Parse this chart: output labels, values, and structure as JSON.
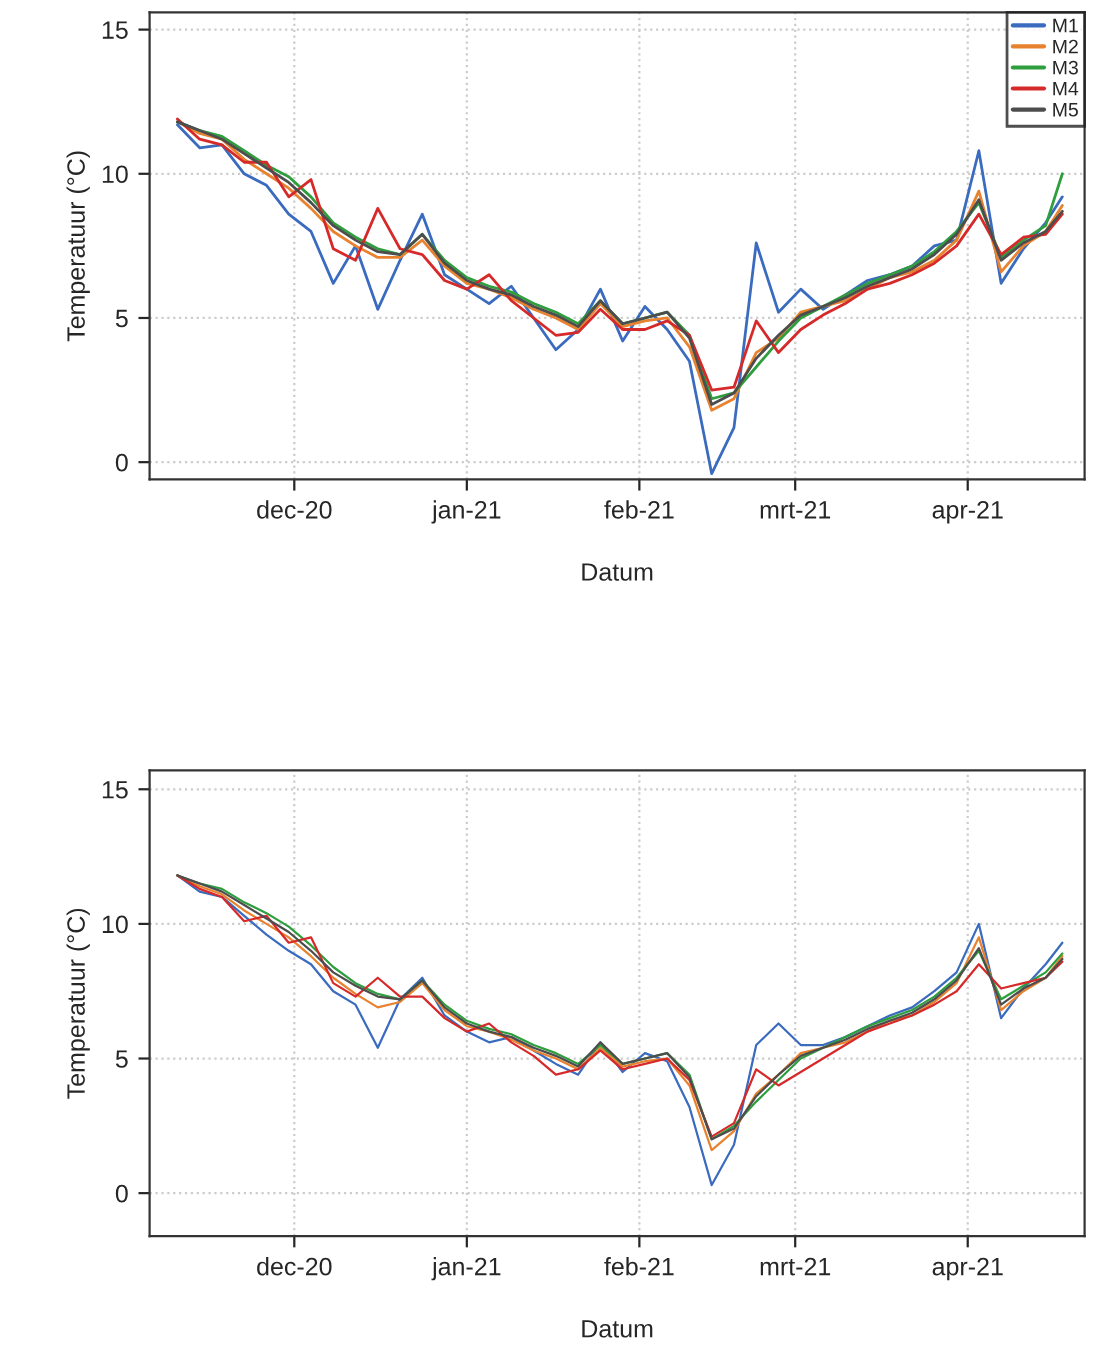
{
  "chart_data": [
    {
      "type": "line",
      "xlabel": "Datum",
      "ylabel": "Temperatuur (°C)",
      "x": [
        "2020-11-10",
        "2020-11-14",
        "2020-11-18",
        "2020-11-22",
        "2020-11-26",
        "2020-11-30",
        "2020-12-04",
        "2020-12-08",
        "2020-12-12",
        "2020-12-16",
        "2020-12-20",
        "2020-12-24",
        "2020-12-28",
        "2021-01-01",
        "2021-01-05",
        "2021-01-09",
        "2021-01-13",
        "2021-01-17",
        "2021-01-21",
        "2021-01-25",
        "2021-01-29",
        "2021-02-02",
        "2021-02-06",
        "2021-02-10",
        "2021-02-14",
        "2021-02-18",
        "2021-02-22",
        "2021-02-26",
        "2021-03-02",
        "2021-03-06",
        "2021-03-10",
        "2021-03-14",
        "2021-03-18",
        "2021-03-22",
        "2021-03-26",
        "2021-03-30",
        "2021-04-03",
        "2021-04-07",
        "2021-04-11",
        "2021-04-15",
        "2021-04-18"
      ],
      "series": [
        {
          "name": "M1",
          "color": "#3a6bbf",
          "values": [
            11.7,
            10.9,
            11.0,
            10.0,
            9.6,
            8.6,
            8.0,
            6.2,
            7.5,
            5.3,
            7.0,
            8.6,
            6.5,
            6.0,
            5.5,
            6.1,
            5.0,
            3.9,
            4.6,
            6.0,
            4.2,
            5.4,
            4.6,
            3.5,
            -0.4,
            1.2,
            7.6,
            5.2,
            6.0,
            5.3,
            5.8,
            6.3,
            6.5,
            6.8,
            7.5,
            7.7,
            10.8,
            6.2,
            7.4,
            8.3,
            9.2
          ]
        },
        {
          "name": "M2",
          "color": "#e8822e",
          "values": [
            11.8,
            11.4,
            11.2,
            10.5,
            10.0,
            9.5,
            8.8,
            8.0,
            7.5,
            7.1,
            7.1,
            7.7,
            6.8,
            6.2,
            6.0,
            5.7,
            5.3,
            5.0,
            4.6,
            5.5,
            4.7,
            4.9,
            5.0,
            4.0,
            1.8,
            2.2,
            3.8,
            4.3,
            5.2,
            5.4,
            5.6,
            6.0,
            6.4,
            6.6,
            7.0,
            7.7,
            9.4,
            6.6,
            7.5,
            8.0,
            8.9
          ]
        },
        {
          "name": "M3",
          "color": "#2e9e3e",
          "values": [
            11.8,
            11.5,
            11.3,
            10.8,
            10.3,
            9.9,
            9.2,
            8.3,
            7.8,
            7.4,
            7.2,
            7.9,
            7.0,
            6.4,
            6.1,
            5.9,
            5.5,
            5.2,
            4.8,
            5.6,
            4.8,
            5.0,
            5.2,
            4.4,
            2.2,
            2.4,
            3.3,
            4.2,
            5.0,
            5.4,
            5.8,
            6.2,
            6.5,
            6.8,
            7.3,
            8.0,
            9.0,
            7.1,
            7.7,
            8.2,
            10.0
          ]
        },
        {
          "name": "M4",
          "color": "#d62a2a",
          "values": [
            11.9,
            11.2,
            11.0,
            10.4,
            10.4,
            9.2,
            9.8,
            7.4,
            7.0,
            8.8,
            7.4,
            7.2,
            6.3,
            6.0,
            6.5,
            5.6,
            5.0,
            4.4,
            4.5,
            5.3,
            4.6,
            4.6,
            4.9,
            4.4,
            2.5,
            2.6,
            4.9,
            3.8,
            4.6,
            5.1,
            5.5,
            6.0,
            6.2,
            6.5,
            6.9,
            7.5,
            8.6,
            7.2,
            7.8,
            7.9,
            8.6
          ]
        },
        {
          "name": "M5",
          "color": "#4d4d4d",
          "values": [
            11.8,
            11.5,
            11.2,
            10.7,
            10.2,
            9.7,
            9.0,
            8.2,
            7.7,
            7.3,
            7.2,
            7.9,
            6.9,
            6.3,
            6.0,
            5.8,
            5.4,
            5.1,
            4.7,
            5.6,
            4.8,
            5.0,
            5.2,
            4.3,
            2.0,
            2.4,
            3.6,
            4.4,
            5.1,
            5.4,
            5.7,
            6.1,
            6.4,
            6.7,
            7.2,
            7.9,
            9.1,
            7.0,
            7.6,
            8.0,
            8.7
          ]
        }
      ],
      "xlim": [
        "2020-11-05",
        "2021-04-22"
      ],
      "xticks": [
        {
          "value": "2020-12-01",
          "label": "dec-20"
        },
        {
          "value": "2021-01-01",
          "label": "jan-21"
        },
        {
          "value": "2021-02-01",
          "label": "feb-21"
        },
        {
          "value": "2021-03-01",
          "label": "mrt-21"
        },
        {
          "value": "2021-04-01",
          "label": "apr-21"
        }
      ],
      "ylim": [
        -0.6,
        15.6
      ],
      "yticks": [
        0,
        5,
        10,
        15
      ],
      "grid": true,
      "legend": "top right"
    },
    {
      "type": "line",
      "xlabel": "Datum",
      "ylabel": "Temperatuur (°C)",
      "x": [
        "2020-11-10",
        "2020-11-14",
        "2020-11-18",
        "2020-11-22",
        "2020-11-26",
        "2020-11-30",
        "2020-12-04",
        "2020-12-08",
        "2020-12-12",
        "2020-12-16",
        "2020-12-20",
        "2020-12-24",
        "2020-12-28",
        "2021-01-01",
        "2021-01-05",
        "2021-01-09",
        "2021-01-13",
        "2021-01-17",
        "2021-01-21",
        "2021-01-25",
        "2021-01-29",
        "2021-02-02",
        "2021-02-06",
        "2021-02-10",
        "2021-02-14",
        "2021-02-18",
        "2021-02-22",
        "2021-02-26",
        "2021-03-02",
        "2021-03-06",
        "2021-03-10",
        "2021-03-14",
        "2021-03-18",
        "2021-03-22",
        "2021-03-26",
        "2021-03-30",
        "2021-04-03",
        "2021-04-07",
        "2021-04-11",
        "2021-04-15",
        "2021-04-18"
      ],
      "series": [
        {
          "color": "#3a6bbf",
          "values": [
            11.8,
            11.2,
            11.0,
            10.3,
            9.6,
            9.0,
            8.5,
            7.5,
            7.0,
            5.4,
            7.2,
            8.0,
            6.6,
            6.0,
            5.6,
            5.8,
            5.3,
            4.8,
            4.4,
            5.6,
            4.5,
            5.2,
            4.9,
            3.2,
            0.3,
            1.8,
            5.5,
            6.3,
            5.5,
            5.5,
            5.8,
            6.2,
            6.6,
            6.9,
            7.5,
            8.2,
            10.0,
            6.5,
            7.6,
            8.5,
            9.3
          ]
        },
        {
          "color": "#e8822e",
          "values": [
            11.8,
            11.4,
            11.1,
            10.5,
            10.0,
            9.5,
            8.8,
            8.0,
            7.4,
            6.9,
            7.1,
            7.8,
            6.8,
            6.2,
            6.0,
            5.7,
            5.3,
            5.0,
            4.6,
            5.4,
            4.7,
            4.9,
            5.0,
            4.0,
            1.6,
            2.3,
            3.7,
            4.4,
            5.2,
            5.4,
            5.6,
            6.0,
            6.4,
            6.6,
            7.1,
            7.8,
            9.5,
            6.8,
            7.5,
            8.0,
            8.8
          ]
        },
        {
          "color": "#2e9e3e",
          "values": [
            11.8,
            11.5,
            11.3,
            10.8,
            10.4,
            9.9,
            9.2,
            8.4,
            7.8,
            7.4,
            7.2,
            7.9,
            7.0,
            6.4,
            6.1,
            5.9,
            5.5,
            5.2,
            4.8,
            5.5,
            4.8,
            5.0,
            5.2,
            4.4,
            2.0,
            2.5,
            3.4,
            4.2,
            5.0,
            5.4,
            5.8,
            6.2,
            6.5,
            6.8,
            7.3,
            8.0,
            9.0,
            7.2,
            7.7,
            8.2,
            8.9
          ]
        },
        {
          "color": "#d62a2a",
          "values": [
            11.8,
            11.3,
            11.0,
            10.1,
            10.3,
            9.3,
            9.5,
            7.8,
            7.3,
            8.0,
            7.3,
            7.3,
            6.5,
            6.0,
            6.3,
            5.6,
            5.1,
            4.4,
            4.6,
            5.3,
            4.6,
            4.8,
            5.0,
            4.2,
            2.1,
            2.6,
            4.6,
            4.0,
            4.5,
            5.0,
            5.5,
            6.0,
            6.3,
            6.6,
            7.0,
            7.5,
            8.5,
            7.6,
            7.8,
            8.0,
            8.6
          ]
        },
        {
          "color": "#4d4d4d",
          "values": [
            11.8,
            11.5,
            11.2,
            10.7,
            10.2,
            9.7,
            9.0,
            8.2,
            7.7,
            7.3,
            7.2,
            7.9,
            6.9,
            6.3,
            6.0,
            5.8,
            5.4,
            5.1,
            4.7,
            5.6,
            4.8,
            5.0,
            5.2,
            4.3,
            2.0,
            2.4,
            3.6,
            4.4,
            5.1,
            5.4,
            5.7,
            6.1,
            6.4,
            6.7,
            7.2,
            7.9,
            9.1,
            7.0,
            7.6,
            8.0,
            8.7
          ]
        }
      ],
      "xlim": [
        "2020-11-05",
        "2021-04-22"
      ],
      "xticks": [
        {
          "value": "2020-12-01",
          "label": "dec-20"
        },
        {
          "value": "2021-01-01",
          "label": "jan-21"
        },
        {
          "value": "2021-02-01",
          "label": "feb-21"
        },
        {
          "value": "2021-03-01",
          "label": "mrt-21"
        },
        {
          "value": "2021-04-01",
          "label": "apr-21"
        }
      ],
      "ylim": [
        -1.6,
        15.7
      ],
      "yticks": [
        0,
        5,
        10,
        15
      ],
      "grid": true
    }
  ]
}
